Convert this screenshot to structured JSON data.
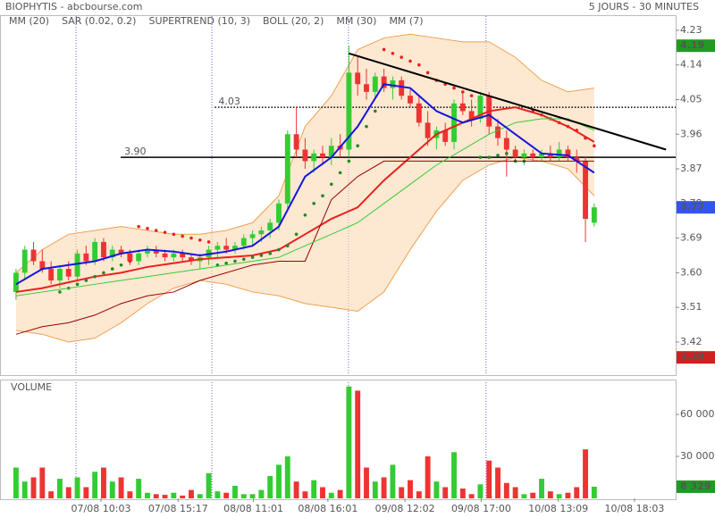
{
  "chart_data": {
    "type": "candlestick",
    "title": "BIOPHYTIS - abcbourse.com",
    "subtitle": "5 JOURS - 30 MINUTES",
    "up_color": "#33cc33",
    "down_color": "#ee3333",
    "open": [
      3.55,
      3.6,
      3.66,
      3.63,
      3.61,
      3.58,
      3.61,
      3.59,
      3.65,
      3.63,
      3.68,
      3.64,
      3.66,
      3.65,
      3.63,
      3.65,
      3.66,
      3.65,
      3.64,
      3.65,
      3.64,
      3.63,
      3.64,
      3.66,
      3.67,
      3.66,
      3.67,
      3.69,
      3.7,
      3.71,
      3.73,
      3.78,
      3.96,
      3.92,
      3.89,
      3.91,
      3.9,
      3.93,
      3.92,
      4.12,
      4.09,
      4.07,
      4.11,
      4.08,
      4.1,
      4.06,
      4.04,
      3.99,
      3.95,
      3.97,
      3.94,
      4.04,
      4.02,
      4.0,
      4.06,
      3.98,
      3.95,
      3.92,
      3.9,
      3.91,
      3.9,
      3.91,
      3.9,
      3.92,
      3.9,
      3.89,
      3.73
    ],
    "high": [
      3.61,
      3.67,
      3.68,
      3.66,
      3.63,
      3.62,
      3.63,
      3.66,
      3.67,
      3.69,
      3.69,
      3.67,
      3.67,
      3.66,
      3.66,
      3.67,
      3.67,
      3.66,
      3.66,
      3.66,
      3.65,
      3.65,
      3.67,
      3.68,
      3.69,
      3.68,
      3.7,
      3.71,
      3.72,
      3.74,
      3.79,
      3.97,
      4.03,
      3.95,
      3.92,
      3.93,
      3.95,
      3.96,
      4.19,
      4.16,
      4.13,
      4.12,
      4.13,
      4.11,
      4.11,
      4.08,
      4.06,
      4.02,
      3.98,
      3.99,
      4.05,
      4.07,
      4.05,
      4.07,
      4.07,
      4.0,
      3.97,
      3.93,
      3.92,
      3.92,
      3.92,
      3.93,
      3.94,
      3.93,
      3.92,
      3.9,
      3.78
    ],
    "low": [
      3.53,
      3.58,
      3.62,
      3.6,
      3.57,
      3.56,
      3.58,
      3.58,
      3.62,
      3.62,
      3.63,
      3.63,
      3.64,
      3.62,
      3.62,
      3.64,
      3.64,
      3.63,
      3.63,
      3.63,
      3.62,
      3.61,
      3.62,
      3.64,
      3.65,
      3.65,
      3.66,
      3.67,
      3.68,
      3.69,
      3.71,
      3.76,
      3.9,
      3.87,
      3.86,
      3.88,
      3.88,
      3.9,
      3.9,
      4.06,
      4.05,
      4.05,
      4.07,
      4.05,
      4.05,
      4.03,
      3.98,
      3.93,
      3.92,
      3.93,
      3.92,
      4.01,
      3.98,
      3.99,
      3.96,
      3.93,
      3.85,
      3.89,
      3.88,
      3.89,
      3.89,
      3.89,
      3.89,
      3.89,
      3.86,
      3.68,
      3.72
    ],
    "close": [
      3.6,
      3.66,
      3.63,
      3.61,
      3.58,
      3.61,
      3.59,
      3.65,
      3.63,
      3.68,
      3.64,
      3.66,
      3.65,
      3.63,
      3.65,
      3.66,
      3.65,
      3.64,
      3.65,
      3.64,
      3.63,
      3.64,
      3.66,
      3.67,
      3.66,
      3.67,
      3.69,
      3.7,
      3.71,
      3.73,
      3.78,
      3.96,
      3.92,
      3.89,
      3.91,
      3.9,
      3.93,
      3.92,
      4.12,
      4.09,
      4.07,
      4.11,
      4.08,
      4.1,
      4.06,
      4.04,
      3.99,
      3.95,
      3.97,
      3.94,
      4.04,
      4.02,
      4.0,
      4.06,
      3.98,
      3.95,
      3.92,
      3.9,
      3.91,
      3.9,
      3.91,
      3.9,
      3.92,
      3.9,
      3.89,
      3.74,
      3.77
    ],
    "xlim": [
      -1.83,
      75.3
    ],
    "ylim": [
      3.334,
      4.267
    ],
    "yticks": [
      {
        "value": 4.23,
        "label": "4.23"
      },
      {
        "value": 4.14,
        "label": "4.14"
      },
      {
        "value": 4.05,
        "label": "4.05"
      },
      {
        "value": 3.96,
        "label": "3.96"
      },
      {
        "value": 3.87,
        "label": "3.87"
      },
      {
        "value": 3.78,
        "label": "3.78"
      },
      {
        "value": 3.69,
        "label": "3.69"
      },
      {
        "value": 3.6,
        "label": "3.60"
      },
      {
        "value": 3.51,
        "label": "3.51"
      },
      {
        "value": 3.42,
        "label": "3.42"
      }
    ],
    "xticks": [
      {
        "value": 9.7,
        "label": "07/08 10:03"
      },
      {
        "value": 18.5,
        "label": "07/08 15:17"
      },
      {
        "value": 27.1,
        "label": "08/08 11:01"
      },
      {
        "value": 35.6,
        "label": "08/08 16:01"
      },
      {
        "value": 44.4,
        "label": "09/08 12:02"
      },
      {
        "value": 53.1,
        "label": "09/08 17:00"
      },
      {
        "value": 61.9,
        "label": "10/08 13:09"
      },
      {
        "value": 70.6,
        "label": "10/08 18:03"
      }
    ],
    "day_lines": [
      6.85,
      22.35,
      37.95,
      53.65
    ],
    "indicator_x": [
      0,
      3,
      6,
      9,
      12,
      15,
      18,
      21,
      24,
      27,
      30,
      33,
      36,
      39,
      42,
      45,
      48,
      51,
      54,
      57,
      60,
      63,
      66
    ],
    "bollinger": {
      "name": "BOLL (20, 2)",
      "color": "#f0a050",
      "fill": "#fcd8b4",
      "upper": [
        3.6,
        3.66,
        3.7,
        3.71,
        3.72,
        3.71,
        3.7,
        3.7,
        3.71,
        3.73,
        3.8,
        3.98,
        4.06,
        4.18,
        4.21,
        4.22,
        4.21,
        4.2,
        4.2,
        4.16,
        4.1,
        4.07,
        4.08
      ],
      "lower": [
        3.45,
        3.44,
        3.42,
        3.43,
        3.47,
        3.52,
        3.56,
        3.58,
        3.57,
        3.55,
        3.54,
        3.52,
        3.51,
        3.5,
        3.55,
        3.66,
        3.76,
        3.84,
        3.88,
        3.9,
        3.89,
        3.87,
        3.8
      ]
    },
    "series": [
      {
        "name": "MM (20)",
        "color": "#e8221c",
        "width": 2,
        "values": [
          3.55,
          3.56,
          3.575,
          3.59,
          3.6,
          3.615,
          3.625,
          3.635,
          3.64,
          3.645,
          3.66,
          3.7,
          3.74,
          3.77,
          3.84,
          3.9,
          3.96,
          3.99,
          4.02,
          4.03,
          4.01,
          3.98,
          3.94
        ]
      },
      {
        "name": "SAR (0.02, 0.2)",
        "color": "#e8221c",
        "up_color": "#228822",
        "dots": true,
        "values": [
          null,
          null,
          null,
          null,
          null,
          3.55,
          3.56,
          3.57,
          3.58,
          3.59,
          3.6,
          3.61,
          3.62,
          3.63,
          3.72,
          3.715,
          3.71,
          3.705,
          3.7,
          3.695,
          3.69,
          3.685,
          3.68,
          3.62,
          3.625,
          3.63,
          3.635,
          3.64,
          3.645,
          3.65,
          3.66,
          3.67,
          3.7,
          3.75,
          3.78,
          3.8,
          3.83,
          3.86,
          3.89,
          3.93,
          3.98,
          4.02,
          4.18,
          4.17,
          4.16,
          4.15,
          4.14,
          4.12,
          4.1,
          4.09,
          4.08,
          4.07,
          4.06,
          3.9,
          3.9,
          3.905,
          3.91,
          3.89,
          3.89,
          4.02,
          4.01,
          4.0,
          3.99,
          3.98,
          3.97,
          3.95,
          3.93
        ]
      },
      {
        "name": "SUPERTREND (10, 3)",
        "color": "#990000",
        "legend_color": "#228822",
        "width": 1,
        "values": [
          3.44,
          3.46,
          3.47,
          3.49,
          3.52,
          3.54,
          3.55,
          3.58,
          3.6,
          3.62,
          3.63,
          3.63,
          3.79,
          3.85,
          3.89,
          3.89,
          3.89,
          3.89,
          3.89,
          3.89,
          3.89,
          3.89,
          3.89
        ]
      },
      {
        "name": "BOLL (20, 2)",
        "color": "#f0a050",
        "bollinger": true
      },
      {
        "name": "MM (30)",
        "color": "#33cc33",
        "width": 1,
        "values": [
          3.54,
          3.55,
          3.56,
          3.57,
          3.58,
          3.59,
          3.6,
          3.61,
          3.62,
          3.63,
          3.64,
          3.67,
          3.7,
          3.73,
          3.78,
          3.83,
          3.88,
          3.92,
          3.96,
          3.99,
          4.0,
          4.0,
          3.97
        ]
      },
      {
        "name": "MM (7)",
        "color": "#1515e0",
        "width": 2,
        "values": [
          3.57,
          3.61,
          3.62,
          3.63,
          3.65,
          3.66,
          3.655,
          3.645,
          3.655,
          3.67,
          3.72,
          3.85,
          3.9,
          3.98,
          4.09,
          4.08,
          4.02,
          3.99,
          4.01,
          3.96,
          3.91,
          3.905,
          3.86
        ]
      }
    ],
    "levels": [
      {
        "value": 4.03,
        "label": "4.03",
        "from": 22.7,
        "dotted": true
      },
      {
        "value": 3.9,
        "label": "3.90",
        "from": 11.95,
        "dotted": false
      }
    ],
    "trendline": {
      "x": [
        38,
        74.2
      ],
      "y": [
        4.17,
        3.92
      ]
    },
    "markers": [
      {
        "value": 4.19,
        "label": "4.19",
        "color": "#229922"
      },
      {
        "value": 3.77,
        "label": "3.77",
        "color": "#3355ee"
      },
      {
        "value": 3.38,
        "label": "3.38",
        "color": "#cc2222"
      }
    ],
    "volume": {
      "title": "VOLUME",
      "values": [
        22000,
        12000,
        15000,
        22000,
        5000,
        14000,
        8000,
        15000,
        8000,
        19000,
        22000,
        12000,
        15000,
        5000,
        14000,
        4000,
        3000,
        2500,
        4000,
        2000,
        6000,
        3000,
        18000,
        5000,
        4000,
        9000,
        3000,
        3000,
        6000,
        16000,
        24000,
        30000,
        12000,
        5000,
        13000,
        8000,
        4000,
        6000,
        80000,
        77000,
        22000,
        12000,
        15000,
        24000,
        8000,
        13000,
        5000,
        30000,
        12000,
        8000,
        33000,
        7000,
        3000,
        10000,
        27000,
        22000,
        11000,
        8000,
        3000,
        4000,
        14000,
        5000,
        3000,
        4000,
        8000,
        35000,
        8329
      ],
      "ylim": [
        0,
        83000
      ],
      "yticks": [
        {
          "value": 60000,
          "label": "60 000"
        },
        {
          "value": 30000,
          "label": "30 000"
        }
      ],
      "marker": {
        "value": 8329,
        "label": "8 329",
        "color": "#229922"
      }
    }
  }
}
